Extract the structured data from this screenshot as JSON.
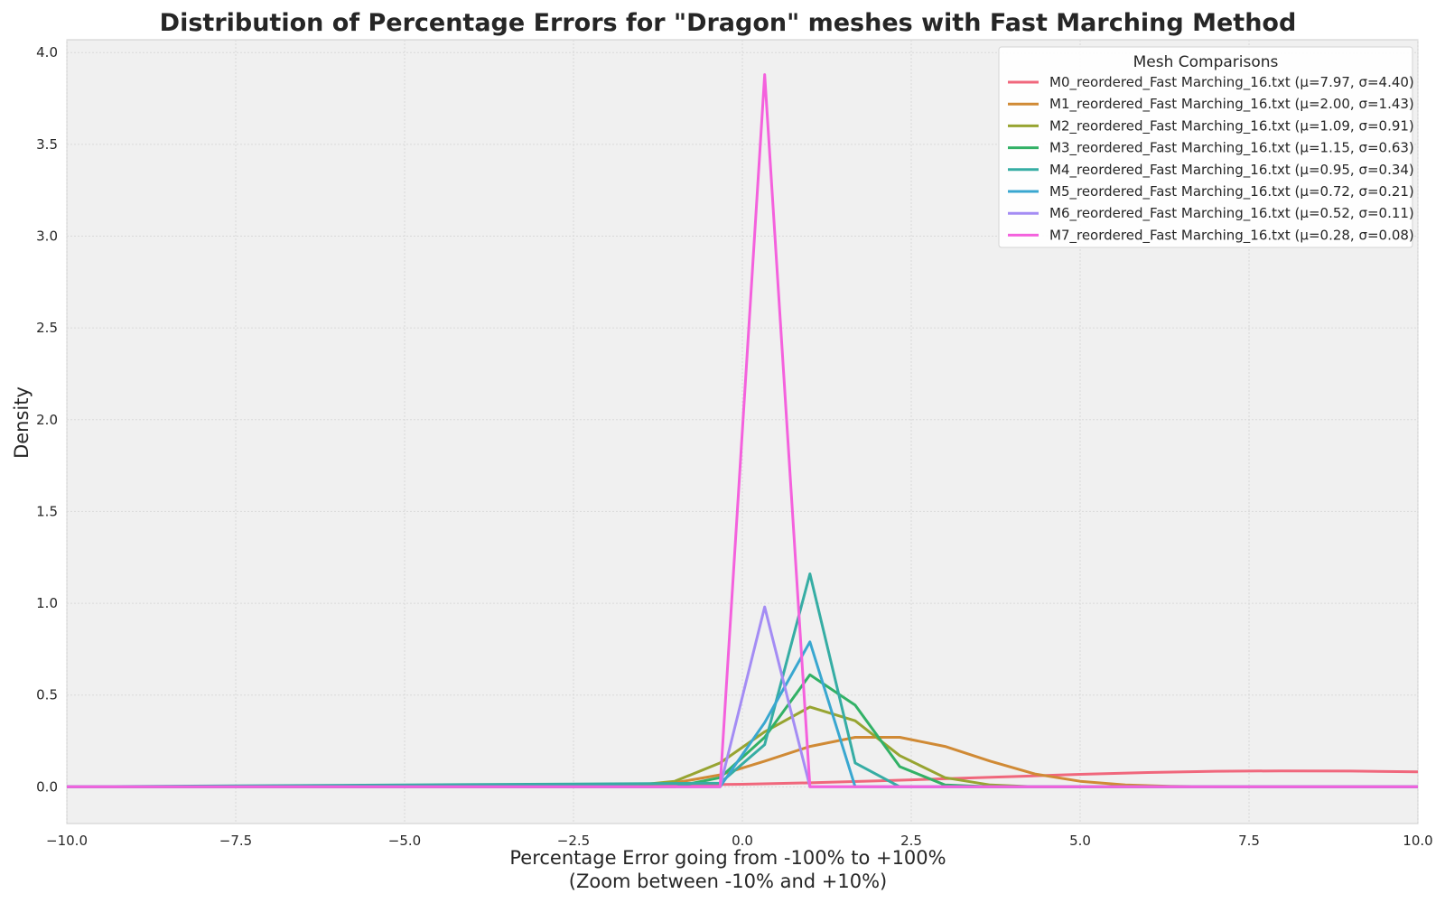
{
  "chart_data": {
    "type": "line",
    "title": "Distribution of Percentage Errors for \"Dragon\" meshes with Fast Marching Method",
    "xlabel_line1": "Percentage Error going from -100% to +100%",
    "xlabel_line2": "(Zoom between -10% and +10%)",
    "ylabel": "Density",
    "xlim": [
      -10,
      10
    ],
    "ylim": [
      -0.2,
      4.07
    ],
    "xticks": [
      -10.0,
      -7.5,
      -5.0,
      -2.5,
      0.0,
      2.5,
      5.0,
      7.5,
      10.0
    ],
    "xtick_labels": [
      "−10.0",
      "−7.5",
      "−5.0",
      "−2.5",
      "0.0",
      "2.5",
      "5.0",
      "7.5",
      "10.0"
    ],
    "yticks": [
      0.0,
      0.5,
      1.0,
      1.5,
      2.0,
      2.5,
      3.0,
      3.5,
      4.0
    ],
    "ytick_labels": [
      "0.0",
      "0.5",
      "1.0",
      "1.5",
      "2.0",
      "2.5",
      "3.0",
      "3.5",
      "4.0"
    ],
    "grid": true,
    "legend_title": "Mesh Comparisons",
    "legend_position": "top-right",
    "series": [
      {
        "name": "M0_reordered_Fast Marching_16.txt (μ=7.97, σ=4.40)",
        "color": "#f0677c",
        "x": [
          -10,
          -8,
          -6,
          -4,
          -2,
          0,
          1,
          2,
          3,
          4,
          5,
          6,
          7,
          7.97,
          9,
          10
        ],
        "y": [
          0.0,
          0.0,
          0.0,
          0.002,
          0.006,
          0.014,
          0.022,
          0.032,
          0.044,
          0.056,
          0.068,
          0.078,
          0.085,
          0.087,
          0.086,
          0.082
        ]
      },
      {
        "name": "M1_reordered_Fast Marching_16.txt (μ=2.00, σ=1.43)",
        "color": "#d08a35",
        "x": [
          -10,
          -5,
          -3,
          -1.67,
          -1.0,
          -0.33,
          0.33,
          1.0,
          1.67,
          2.33,
          3.0,
          3.67,
          4.33,
          5.0,
          5.67,
          6.33,
          7.0,
          10
        ],
        "y": [
          0.0,
          0.0,
          0.002,
          0.008,
          0.022,
          0.065,
          0.14,
          0.22,
          0.27,
          0.27,
          0.22,
          0.14,
          0.07,
          0.03,
          0.01,
          0.003,
          0.0,
          0.0
        ]
      },
      {
        "name": "M2_reordered_Fast Marching_16.txt (μ=1.09, σ=0.91)",
        "color": "#97a431",
        "x": [
          -10,
          -2.33,
          -1.67,
          -1.0,
          -0.33,
          0.33,
          1.0,
          1.67,
          2.33,
          3.0,
          3.67,
          4.33,
          10
        ],
        "y": [
          0.0,
          0.0,
          0.005,
          0.03,
          0.13,
          0.3,
          0.435,
          0.36,
          0.17,
          0.05,
          0.01,
          0.0,
          0.0
        ]
      },
      {
        "name": "M3_reordered_Fast Marching_16.txt (μ=1.15, σ=0.63)",
        "color": "#32b166",
        "x": [
          -10,
          -1.0,
          -0.33,
          0.33,
          1.0,
          1.67,
          2.33,
          3.0,
          3.67,
          10
        ],
        "y": [
          0.0,
          0.0,
          0.05,
          0.27,
          0.61,
          0.445,
          0.11,
          0.01,
          0.0,
          0.0
        ]
      },
      {
        "name": "M4_reordered_Fast Marching_16.txt (μ=0.95, σ=0.34)",
        "color": "#36ada4",
        "x": [
          -10,
          -0.33,
          0.33,
          1.0,
          1.67,
          2.33,
          10
        ],
        "y": [
          0.0,
          0.02,
          0.23,
          1.16,
          0.13,
          0.0,
          0.0
        ]
      },
      {
        "name": "M5_reordered_Fast Marching_16.txt (μ=0.72, σ=0.21)",
        "color": "#39a7d0",
        "x": [
          -10,
          -0.33,
          0.33,
          1.0,
          1.67,
          1.67,
          10
        ],
        "y": [
          0.0,
          0.0,
          0.35,
          0.79,
          0.0,
          0.0,
          0.0
        ]
      },
      {
        "name": "M6_reordered_Fast Marching_16.txt (μ=0.52, σ=0.11)",
        "color": "#a48cf4",
        "x": [
          -10,
          -0.33,
          0.33,
          1.0,
          10
        ],
        "y": [
          0.0,
          0.0,
          0.98,
          0.0,
          0.0
        ]
      },
      {
        "name": "M7_reordered_Fast Marching_16.txt (μ=0.28, σ=0.08)",
        "color": "#f461dd",
        "x": [
          -10,
          -0.33,
          0.33,
          1.0,
          10
        ],
        "y": [
          0.0,
          0.0,
          3.88,
          0.0,
          0.0
        ]
      }
    ]
  }
}
